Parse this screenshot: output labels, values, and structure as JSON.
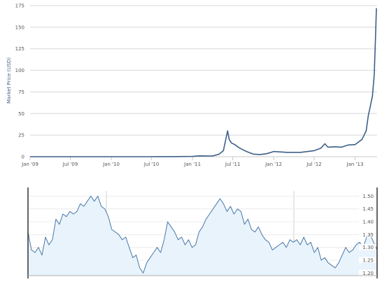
{
  "chart_data": [
    {
      "type": "line",
      "title": "",
      "ylabel": "Market Price (USD)",
      "xlabel": "",
      "ylim": [
        0,
        175
      ],
      "yticks": [
        0,
        25,
        50,
        75,
        100,
        125,
        150,
        175
      ],
      "xlim": [
        "2009-01",
        "2013-04"
      ],
      "xticks": [
        "Jan '09",
        "Jul '09",
        "Jan '10",
        "Jul '10",
        "Jan '11",
        "Jul '11",
        "Jan '12",
        "Jul '12",
        "Jan '13"
      ],
      "grid": true,
      "line_color": "#3d6189",
      "series": [
        {
          "x": [
            "2009-01",
            "2009-07",
            "2010-01",
            "2010-07",
            "2010-08",
            "2010-10",
            "2011-01",
            "2011-02",
            "2011-03",
            "2011-04",
            "2011-05",
            "2011-05-20",
            "2011-06-08",
            "2011-06-15",
            "2011-06-25",
            "2011-07-10",
            "2011-08",
            "2011-09",
            "2011-10",
            "2011-11",
            "2011-12",
            "2012-01",
            "2012-03",
            "2012-05",
            "2012-07",
            "2012-08",
            "2012-08-18",
            "2012-09",
            "2012-10",
            "2012-11",
            "2012-12",
            "2013-01",
            "2013-02",
            "2013-02-20",
            "2013-03",
            "2013-03-20",
            "2013-03-28",
            "2013-04-03",
            "2013-04-07"
          ],
          "values": [
            0,
            0,
            0,
            0,
            0.07,
            0.1,
            0.3,
            1,
            0.9,
            0.8,
            3,
            7,
            30,
            20,
            16,
            14,
            10,
            6,
            3,
            2.5,
            3.5,
            6,
            5,
            5,
            7,
            10,
            15,
            11,
            11.5,
            11,
            13.5,
            14,
            20,
            30,
            47,
            70,
            95,
            140,
            172
          ]
        }
      ]
    },
    {
      "type": "area",
      "title": "",
      "ylim": [
        1.19,
        1.52
      ],
      "yticks": [
        1.2,
        1.25,
        1.3,
        1.35,
        1.4,
        1.45,
        1.5
      ],
      "ytick_labels": [
        "1.20",
        "1.25",
        "1.30",
        "1.35",
        "1.40",
        "1.45",
        "1.50"
      ],
      "grid": true,
      "line_color": "#4a78a8",
      "fill_color": "#e8f3fc",
      "series": [
        {
          "x": [
            0,
            1,
            2,
            3,
            4,
            5,
            6,
            7,
            8,
            9,
            10,
            11,
            12,
            13,
            14,
            15,
            16,
            17,
            18,
            19,
            20,
            21,
            22,
            23,
            24,
            25,
            26,
            27,
            28,
            29,
            30,
            31,
            32,
            33,
            34,
            35,
            36,
            37,
            38,
            39,
            40,
            41,
            42,
            43,
            44,
            45,
            46,
            47,
            48,
            49,
            50,
            51,
            52,
            53,
            54,
            55,
            56,
            57,
            58,
            59,
            60,
            61,
            62,
            63,
            64,
            65,
            66,
            67,
            68,
            69,
            70,
            71,
            72,
            73,
            74,
            75,
            76,
            77,
            78,
            79,
            80,
            81,
            82,
            83,
            84,
            85,
            86,
            87,
            88,
            89,
            90,
            91,
            92,
            93,
            94,
            95,
            96,
            97,
            98,
            99,
            100
          ],
          "values": [
            1.36,
            1.29,
            1.28,
            1.3,
            1.27,
            1.34,
            1.31,
            1.33,
            1.41,
            1.39,
            1.43,
            1.42,
            1.44,
            1.43,
            1.44,
            1.47,
            1.46,
            1.48,
            1.5,
            1.48,
            1.5,
            1.46,
            1.45,
            1.42,
            1.37,
            1.36,
            1.35,
            1.33,
            1.34,
            1.3,
            1.26,
            1.27,
            1.22,
            1.2,
            1.24,
            1.26,
            1.28,
            1.3,
            1.28,
            1.33,
            1.4,
            1.38,
            1.36,
            1.33,
            1.34,
            1.31,
            1.33,
            1.3,
            1.31,
            1.36,
            1.38,
            1.41,
            1.43,
            1.45,
            1.47,
            1.49,
            1.47,
            1.44,
            1.46,
            1.43,
            1.45,
            1.44,
            1.39,
            1.41,
            1.37,
            1.36,
            1.38,
            1.35,
            1.33,
            1.32,
            1.29,
            1.3,
            1.31,
            1.32,
            1.3,
            1.33,
            1.32,
            1.33,
            1.31,
            1.34,
            1.31,
            1.32,
            1.28,
            1.3,
            1.25,
            1.26,
            1.24,
            1.23,
            1.22,
            1.24,
            1.27,
            1.3,
            1.28,
            1.29,
            1.31,
            1.32,
            1.3,
            1.34,
            1.35,
            1.32,
            1.29
          ]
        }
      ]
    }
  ]
}
